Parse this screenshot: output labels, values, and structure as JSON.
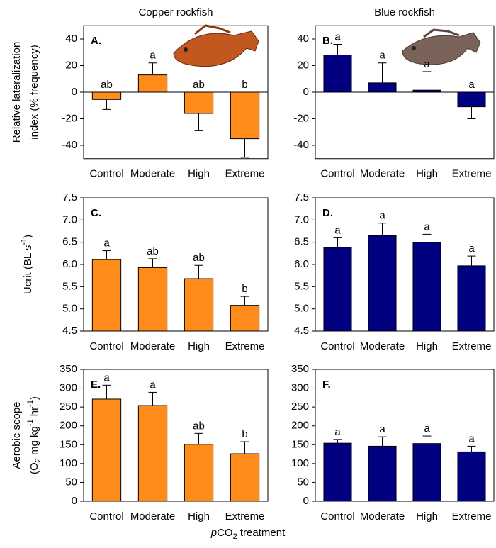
{
  "column_titles": [
    "Copper rockfish",
    "Blue rockfish"
  ],
  "x_label": [
    {
      "text": "p",
      "style": "italic"
    },
    {
      "text": "CO"
    },
    {
      "text": "2",
      "script": "sub"
    },
    {
      "text": " treatment"
    }
  ],
  "chart_data": [
    {
      "type": "bar",
      "panel": "A.",
      "categories": [
        "Control",
        "Moderate",
        "High",
        "Extreme"
      ],
      "values": [
        -5.5,
        13,
        -16,
        -35
      ],
      "errors": [
        7.5,
        9,
        13,
        14
      ],
      "letters": [
        "ab",
        "a",
        "ab",
        "b"
      ],
      "color": "#ff8c1a",
      "ylim": [
        -50,
        50
      ],
      "yticks": [
        -40,
        -20,
        0,
        20,
        40
      ],
      "y_label": [
        [
          {
            "text": "Relative lateralization"
          }
        ],
        [
          {
            "text": "index (% frequency)"
          }
        ]
      ]
    },
    {
      "type": "bar",
      "panel": "B.",
      "categories": [
        "Control",
        "Moderate",
        "High",
        "Extreme"
      ],
      "values": [
        28,
        7,
        1.5,
        -11
      ],
      "errors": [
        8,
        15,
        14,
        9
      ],
      "letters": [
        "a",
        "a",
        "a",
        "a"
      ],
      "color": "#000080",
      "ylim": [
        -50,
        50
      ],
      "yticks": [
        -40,
        -20,
        0,
        20,
        40
      ]
    },
    {
      "type": "bar",
      "panel": "C.",
      "categories": [
        "Control",
        "Moderate",
        "High",
        "Extreme"
      ],
      "values": [
        6.11,
        5.93,
        5.68,
        5.08
      ],
      "errors": [
        0.2,
        0.2,
        0.3,
        0.2
      ],
      "letters": [
        "a",
        "ab",
        "ab",
        "b"
      ],
      "color": "#ff8c1a",
      "ylim": [
        4.5,
        7.5
      ],
      "yticks": [
        4.5,
        {
          "value": 5,
          "label": "5.0"
        },
        5.5,
        {
          "value": 6,
          "label": "6.0"
        },
        6.5,
        {
          "value": 7,
          "label": "7.0"
        },
        7.5
      ],
      "y_label": [
        [
          {
            "text": "Ucrit (BL s"
          },
          {
            "text": "-1",
            "script": "super"
          },
          {
            "text": ")"
          }
        ]
      ]
    },
    {
      "type": "bar",
      "panel": "D.",
      "categories": [
        "Control",
        "Moderate",
        "High",
        "Extreme"
      ],
      "values": [
        6.38,
        6.65,
        6.5,
        5.97
      ],
      "errors": [
        0.22,
        0.28,
        0.18,
        0.22
      ],
      "letters": [
        "a",
        "a",
        "a",
        "a"
      ],
      "color": "#000080",
      "ylim": [
        4.5,
        7.5
      ],
      "yticks": [
        4.5,
        {
          "value": 5,
          "label": "5.0"
        },
        5.5,
        {
          "value": 6,
          "label": "6.0"
        },
        6.5,
        {
          "value": 7,
          "label": "7.0"
        },
        7.5
      ]
    },
    {
      "type": "bar",
      "panel": "E.",
      "categories": [
        "Control",
        "Moderate",
        "High",
        "Extreme"
      ],
      "values": [
        271,
        254,
        151,
        126
      ],
      "errors": [
        37,
        35,
        29,
        32
      ],
      "letters": [
        "a",
        "a",
        "ab",
        "b"
      ],
      "color": "#ff8c1a",
      "ylim": [
        0,
        350
      ],
      "yticks": [
        0,
        50,
        100,
        150,
        200,
        250,
        300,
        350
      ],
      "y_label": [
        [
          {
            "text": "Aerobic scope"
          }
        ],
        [
          {
            "text": "(O"
          },
          {
            "text": "2",
            "script": "sub"
          },
          {
            "text": " mg kg"
          },
          {
            "text": "-1",
            "script": "super"
          },
          {
            "text": " hr"
          },
          {
            "text": "-1",
            "script": "super"
          },
          {
            "text": ")"
          }
        ]
      ]
    },
    {
      "type": "bar",
      "panel": "F.",
      "categories": [
        "Control",
        "Moderate",
        "High",
        "Extreme"
      ],
      "values": [
        154,
        146,
        153,
        131
      ],
      "errors": [
        10,
        25,
        20,
        15
      ],
      "letters": [
        "a",
        "a",
        "a",
        "a"
      ],
      "color": "#000080",
      "ylim": [
        0,
        350
      ],
      "yticks": [
        0,
        50,
        100,
        150,
        200,
        250,
        300,
        350
      ]
    }
  ]
}
